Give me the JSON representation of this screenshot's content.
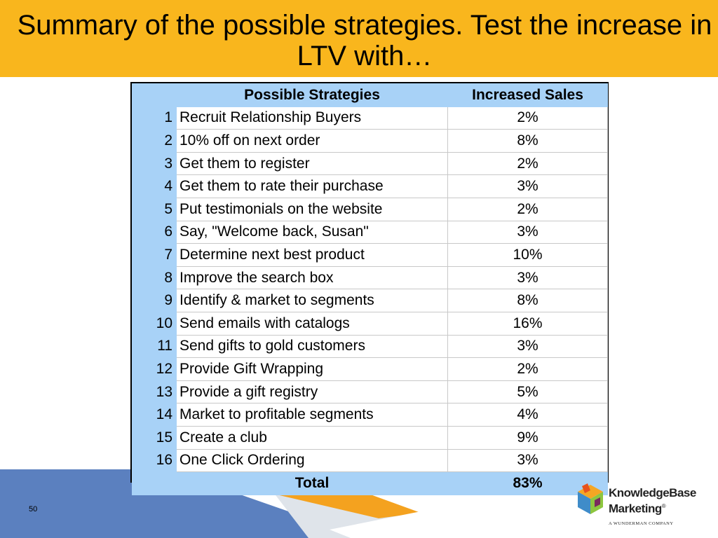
{
  "slide": {
    "title": "Summary of the possible strategies. Test the increase in LTV with…",
    "page_number": "50"
  },
  "table": {
    "headers": {
      "strategy": "Possible Strategies",
      "sales": "Increased Sales"
    },
    "rows": [
      {
        "num": "1",
        "strategy": "Recruit Relationship Buyers",
        "sales": "2%"
      },
      {
        "num": "2",
        "strategy": "10% off on next order",
        "sales": "8%"
      },
      {
        "num": "3",
        "strategy": "Get them to register",
        "sales": "2%"
      },
      {
        "num": "4",
        "strategy": "Get them to rate their purchase",
        "sales": "3%"
      },
      {
        "num": "5",
        "strategy": "Put testimonials on the website",
        "sales": "2%"
      },
      {
        "num": "6",
        "strategy": "Say, \"Welcome back, Susan\"",
        "sales": "3%"
      },
      {
        "num": "7",
        "strategy": "Determine next best product",
        "sales": "10%"
      },
      {
        "num": "8",
        "strategy": "Improve the search box",
        "sales": "3%"
      },
      {
        "num": "9",
        "strategy": "Identify & market to segments",
        "sales": "8%"
      },
      {
        "num": "10",
        "strategy": "Send emails with catalogs",
        "sales": "16%"
      },
      {
        "num": "11",
        "strategy": "Send gifts to gold customers",
        "sales": "3%"
      },
      {
        "num": "12",
        "strategy": "Provide Gift Wrapping",
        "sales": "2%"
      },
      {
        "num": "13",
        "strategy": "Provide a gift registry",
        "sales": "5%"
      },
      {
        "num": "14",
        "strategy": "Market to profitable segments",
        "sales": "4%"
      },
      {
        "num": "15",
        "strategy": "Create a club",
        "sales": "9%"
      },
      {
        "num": "16",
        "strategy": "One Click Ordering",
        "sales": "3%"
      }
    ],
    "total": {
      "label": "Total",
      "sales": "83%"
    }
  },
  "logo": {
    "name_line1": "KnowledgeBase",
    "name_line2": "Marketing",
    "mark": "®",
    "subline": "A WUNDERMAN COMPANY"
  },
  "colors": {
    "header_bg": "#f9b61d",
    "table_header_bg": "#a8d2f7",
    "footer_blue": "#5b80bf",
    "footer_orange": "#f4a21f"
  }
}
